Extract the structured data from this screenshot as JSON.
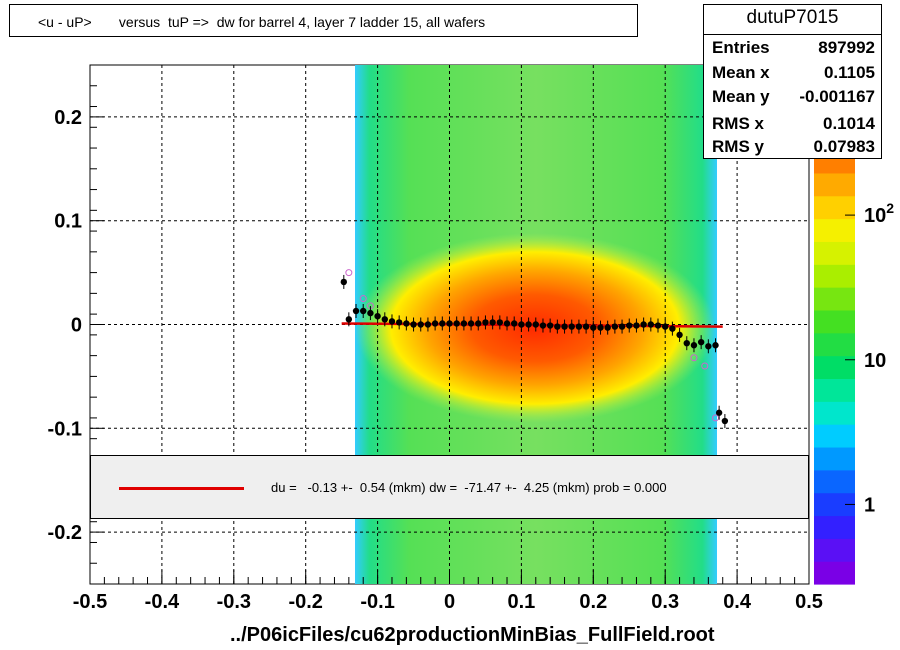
{
  "title": "<u - uP>       versus  tuP =>  dw for barrel 4, layer 7 ladder 15, all wafers",
  "stats": {
    "name": "dutuP7015",
    "rows": [
      {
        "label": "Entries",
        "value": "897992"
      },
      {
        "label": "Mean x",
        "value": "0.1105"
      },
      {
        "label": "Mean y",
        "value": "-0.001167"
      },
      {
        "label": "RMS x",
        "value": "0.1014"
      },
      {
        "label": "RMS y",
        "value": "0.07983"
      }
    ]
  },
  "fit_legend": "du =   -0.13 +-  0.54 (mkm) dw =  -71.47 +-  4.25 (mkm) prob = 0.000",
  "xlabel": "../P06icFiles/cu62productionMinBias_FullField.root",
  "colors": {
    "fit_line": "#e00000",
    "points": "#000000",
    "open_points": "#cc66cc"
  },
  "chart_data": {
    "type": "heatmap",
    "xlim": [
      -0.5,
      0.5
    ],
    "ylim": [
      -0.25,
      0.25
    ],
    "x_ticks": [
      "-0.5",
      "-0.4",
      "-0.3",
      "-0.2",
      "-0.1",
      "0",
      "0.1",
      "0.2",
      "0.3",
      "0.4",
      "0.5"
    ],
    "y_ticks": [
      "-0.2",
      "-0.1",
      "0",
      "0.1",
      "0.2"
    ],
    "z_scale": "log",
    "z_ticks": [
      "1",
      "10",
      "10^2"
    ],
    "grid": true,
    "fit_line": {
      "x": [
        -0.15,
        0.38
      ],
      "y": [
        0.001,
        -0.002
      ]
    },
    "profile_points": [
      {
        "x": -0.147,
        "y": 0.041
      },
      {
        "x": -0.14,
        "y": 0.005
      },
      {
        "x": -0.13,
        "y": 0.013
      },
      {
        "x": -0.12,
        "y": 0.013
      },
      {
        "x": -0.11,
        "y": 0.011
      },
      {
        "x": -0.1,
        "y": 0.008
      },
      {
        "x": -0.09,
        "y": 0.005
      },
      {
        "x": -0.08,
        "y": 0.003
      },
      {
        "x": -0.07,
        "y": 0.002
      },
      {
        "x": -0.06,
        "y": 0.001
      },
      {
        "x": -0.05,
        "y": 0.0
      },
      {
        "x": -0.04,
        "y": 0.0
      },
      {
        "x": -0.03,
        "y": 0.0
      },
      {
        "x": -0.02,
        "y": 0.001
      },
      {
        "x": -0.01,
        "y": 0.001
      },
      {
        "x": 0.0,
        "y": 0.001
      },
      {
        "x": 0.01,
        "y": 0.001
      },
      {
        "x": 0.02,
        "y": 0.001
      },
      {
        "x": 0.03,
        "y": 0.001
      },
      {
        "x": 0.04,
        "y": 0.001
      },
      {
        "x": 0.05,
        "y": 0.002
      },
      {
        "x": 0.06,
        "y": 0.002
      },
      {
        "x": 0.07,
        "y": 0.002
      },
      {
        "x": 0.08,
        "y": 0.001
      },
      {
        "x": 0.09,
        "y": 0.001
      },
      {
        "x": 0.1,
        "y": 0.0
      },
      {
        "x": 0.11,
        "y": 0.0
      },
      {
        "x": 0.12,
        "y": 0.0
      },
      {
        "x": 0.13,
        "y": -0.001
      },
      {
        "x": 0.14,
        "y": -0.001
      },
      {
        "x": 0.15,
        "y": -0.002
      },
      {
        "x": 0.16,
        "y": -0.002
      },
      {
        "x": 0.17,
        "y": -0.002
      },
      {
        "x": 0.18,
        "y": -0.002
      },
      {
        "x": 0.19,
        "y": -0.002
      },
      {
        "x": 0.2,
        "y": -0.003
      },
      {
        "x": 0.21,
        "y": -0.003
      },
      {
        "x": 0.22,
        "y": -0.003
      },
      {
        "x": 0.23,
        "y": -0.002
      },
      {
        "x": 0.24,
        "y": -0.002
      },
      {
        "x": 0.25,
        "y": -0.001
      },
      {
        "x": 0.26,
        "y": -0.001
      },
      {
        "x": 0.27,
        "y": 0.0
      },
      {
        "x": 0.28,
        "y": 0.0
      },
      {
        "x": 0.29,
        "y": -0.001
      },
      {
        "x": 0.3,
        "y": -0.002
      },
      {
        "x": 0.31,
        "y": -0.004
      },
      {
        "x": 0.32,
        "y": -0.01
      },
      {
        "x": 0.33,
        "y": -0.018
      },
      {
        "x": 0.34,
        "y": -0.02
      },
      {
        "x": 0.35,
        "y": -0.017
      },
      {
        "x": 0.36,
        "y": -0.021
      },
      {
        "x": 0.37,
        "y": -0.02
      },
      {
        "x": 0.375,
        "y": -0.085
      },
      {
        "x": 0.383,
        "y": -0.093
      }
    ],
    "open_points": [
      {
        "x": -0.14,
        "y": 0.05
      },
      {
        "x": -0.12,
        "y": 0.025
      },
      {
        "x": -0.11,
        "y": 0.018
      },
      {
        "x": 0.34,
        "y": -0.032
      },
      {
        "x": 0.355,
        "y": -0.04
      },
      {
        "x": 0.37,
        "y": -0.09
      }
    ]
  }
}
